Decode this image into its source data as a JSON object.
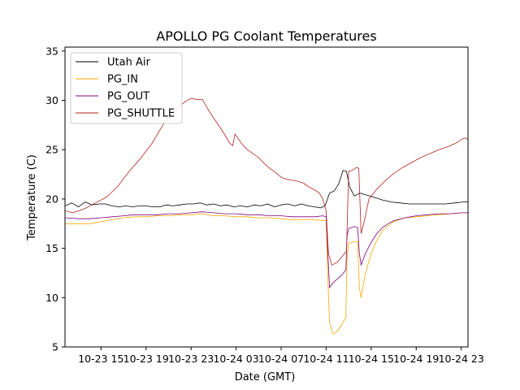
{
  "chart_data": {
    "type": "line",
    "title": "APOLLO PG Coolant Temperatures",
    "xlabel": "Date (GMT)",
    "ylabel": "Temperature (C)",
    "x_unit": "hours since 2018-10-23 00:00 GMT",
    "xlim": [
      11.8,
      47.6
    ],
    "ylim": [
      5,
      35.4
    ],
    "grid": false,
    "legend_position": "upper-left",
    "x_ticks": [
      {
        "value": 15,
        "label": "10-23 15"
      },
      {
        "value": 19,
        "label": "10-23 19"
      },
      {
        "value": 23,
        "label": "10-23 23"
      },
      {
        "value": 27,
        "label": "10-24 03"
      },
      {
        "value": 31,
        "label": "10-24 07"
      },
      {
        "value": 35,
        "label": "10-24 11"
      },
      {
        "value": 39,
        "label": "10-24 15"
      },
      {
        "value": 43,
        "label": "10-24 19"
      },
      {
        "value": 47,
        "label": "10-24 23"
      }
    ],
    "y_ticks": [
      {
        "value": 5,
        "label": "5"
      },
      {
        "value": 10,
        "label": "10"
      },
      {
        "value": 15,
        "label": "15"
      },
      {
        "value": 20,
        "label": "20"
      },
      {
        "value": 25,
        "label": "25"
      },
      {
        "value": 30,
        "label": "30"
      },
      {
        "value": 35,
        "label": "35"
      }
    ],
    "series": [
      {
        "name": "Utah Air",
        "color": "#000000",
        "x": [
          11.8,
          12.4,
          13.0,
          13.6,
          14.2,
          14.8,
          15.4,
          16.0,
          16.6,
          17.2,
          17.8,
          18.4,
          19.0,
          19.6,
          20.2,
          20.8,
          21.4,
          22.0,
          22.6,
          23.2,
          23.8,
          24.4,
          25.0,
          25.6,
          26.2,
          26.8,
          27.4,
          28.0,
          28.6,
          29.2,
          29.8,
          30.4,
          31.0,
          31.6,
          32.2,
          32.8,
          33.4,
          34.0,
          34.5,
          34.9,
          35.3,
          35.7,
          36.1,
          36.5,
          36.8,
          37.1,
          37.5,
          38.0,
          38.6,
          39.2,
          40.0,
          40.8,
          41.6,
          42.4,
          43.2,
          44.0,
          44.8,
          45.6,
          46.4,
          47.2,
          47.6
        ],
        "y": [
          19.3,
          19.6,
          19.2,
          19.7,
          19.4,
          19.5,
          19.5,
          19.3,
          19.2,
          19.3,
          19.2,
          19.3,
          19.3,
          19.2,
          19.2,
          19.4,
          19.3,
          19.4,
          19.5,
          19.5,
          19.6,
          19.4,
          19.5,
          19.3,
          19.4,
          19.2,
          19.3,
          19.2,
          19.4,
          19.3,
          19.5,
          19.2,
          19.4,
          19.5,
          19.3,
          19.5,
          19.3,
          19.2,
          19.1,
          19.3,
          20.6,
          20.8,
          21.5,
          22.9,
          22.8,
          21.2,
          20.3,
          20.6,
          20.4,
          20.2,
          19.9,
          19.7,
          19.6,
          19.5,
          19.5,
          19.5,
          19.5,
          19.5,
          19.6,
          19.7,
          19.7
        ]
      },
      {
        "name": "PG_IN",
        "color": "#f5a800",
        "x": [
          11.8,
          13.0,
          14.0,
          15.0,
          16.0,
          17.0,
          18.0,
          19.0,
          20.0,
          21.0,
          22.0,
          23.0,
          24.0,
          25.0,
          26.0,
          27.0,
          28.0,
          29.0,
          30.0,
          31.0,
          32.0,
          33.0,
          34.0,
          34.7,
          35.0,
          35.15,
          35.3,
          35.6,
          36.0,
          36.4,
          36.75,
          36.85,
          37.0,
          37.5,
          37.8,
          37.95,
          38.1,
          38.5,
          39.0,
          39.5,
          40.0,
          40.5,
          41.0,
          42.0,
          43.0,
          44.0,
          45.0,
          46.0,
          47.0,
          47.6
        ],
        "y": [
          17.5,
          17.5,
          17.5,
          17.7,
          17.9,
          18.1,
          18.2,
          18.2,
          18.3,
          18.3,
          18.4,
          18.4,
          18.5,
          18.3,
          18.3,
          18.2,
          18.2,
          18.1,
          18.1,
          18.0,
          17.9,
          17.9,
          17.9,
          17.8,
          17.8,
          12.0,
          7.5,
          6.3,
          6.6,
          7.3,
          8.0,
          14.0,
          15.5,
          15.7,
          15.7,
          11.0,
          10.0,
          12.5,
          14.5,
          15.8,
          16.8,
          17.3,
          17.7,
          18.1,
          18.2,
          18.3,
          18.4,
          18.5,
          18.6,
          18.6
        ]
      },
      {
        "name": "PG_OUT",
        "color": "#800080",
        "x": [
          11.8,
          13.0,
          14.0,
          15.0,
          16.0,
          17.0,
          18.0,
          19.0,
          20.0,
          21.0,
          22.0,
          23.0,
          24.0,
          25.0,
          26.0,
          27.0,
          28.0,
          29.0,
          30.0,
          31.0,
          32.0,
          33.0,
          34.0,
          34.7,
          35.0,
          35.15,
          35.3,
          35.6,
          36.0,
          36.4,
          36.75,
          36.85,
          37.0,
          37.5,
          37.8,
          37.95,
          38.1,
          38.5,
          39.0,
          39.5,
          40.0,
          40.5,
          41.0,
          42.0,
          43.0,
          44.0,
          45.0,
          46.0,
          47.0,
          47.6
        ],
        "y": [
          18.1,
          18.0,
          18.0,
          18.1,
          18.2,
          18.3,
          18.4,
          18.4,
          18.4,
          18.5,
          18.5,
          18.6,
          18.7,
          18.6,
          18.5,
          18.5,
          18.4,
          18.4,
          18.3,
          18.3,
          18.2,
          18.2,
          18.2,
          18.3,
          18.2,
          14.5,
          11.0,
          11.5,
          11.9,
          12.3,
          12.8,
          16.2,
          17.0,
          17.2,
          17.1,
          14.5,
          13.3,
          14.5,
          15.6,
          16.5,
          17.1,
          17.5,
          17.8,
          18.1,
          18.3,
          18.4,
          18.5,
          18.5,
          18.6,
          18.6
        ]
      },
      {
        "name": "PG_SHUTTLE",
        "color": "#b22222",
        "x": [
          11.8,
          12.5,
          13.5,
          14.5,
          15.5,
          16.5,
          17.5,
          18.5,
          19.5,
          20.5,
          21.5,
          22.0,
          22.5,
          23.0,
          23.5,
          24.0,
          24.5,
          25.0,
          25.5,
          26.0,
          26.4,
          26.7,
          26.9,
          27.5,
          28.0,
          28.5,
          29.0,
          29.5,
          30.0,
          30.5,
          31.0,
          31.5,
          32.0,
          32.5,
          33.0,
          33.5,
          34.0,
          34.4,
          34.7,
          35.0,
          35.2,
          35.5,
          36.0,
          36.5,
          36.8,
          37.0,
          37.3,
          37.7,
          37.9,
          38.1,
          38.4,
          38.8,
          39.5,
          40.2,
          41.0,
          41.8,
          42.6,
          43.4,
          44.2,
          45.0,
          45.8,
          46.6,
          47.1,
          47.4,
          47.6
        ],
        "y": [
          18.8,
          18.6,
          19.0,
          19.6,
          20.2,
          21.3,
          22.8,
          24.1,
          25.6,
          27.5,
          28.9,
          29.4,
          29.9,
          30.2,
          30.1,
          30.1,
          29.1,
          28.2,
          27.4,
          26.5,
          25.7,
          25.4,
          26.6,
          25.6,
          25.0,
          24.6,
          24.2,
          23.6,
          23.1,
          22.7,
          22.2,
          22.0,
          21.9,
          21.8,
          21.6,
          21.2,
          20.9,
          20.6,
          20.0,
          18.8,
          14.5,
          13.3,
          13.6,
          14.3,
          14.7,
          22.8,
          22.9,
          23.2,
          23.1,
          16.5,
          17.8,
          20.0,
          21.0,
          21.8,
          22.6,
          23.2,
          23.7,
          24.2,
          24.6,
          25.0,
          25.3,
          25.7,
          26.1,
          26.2,
          26.0
        ]
      }
    ]
  }
}
